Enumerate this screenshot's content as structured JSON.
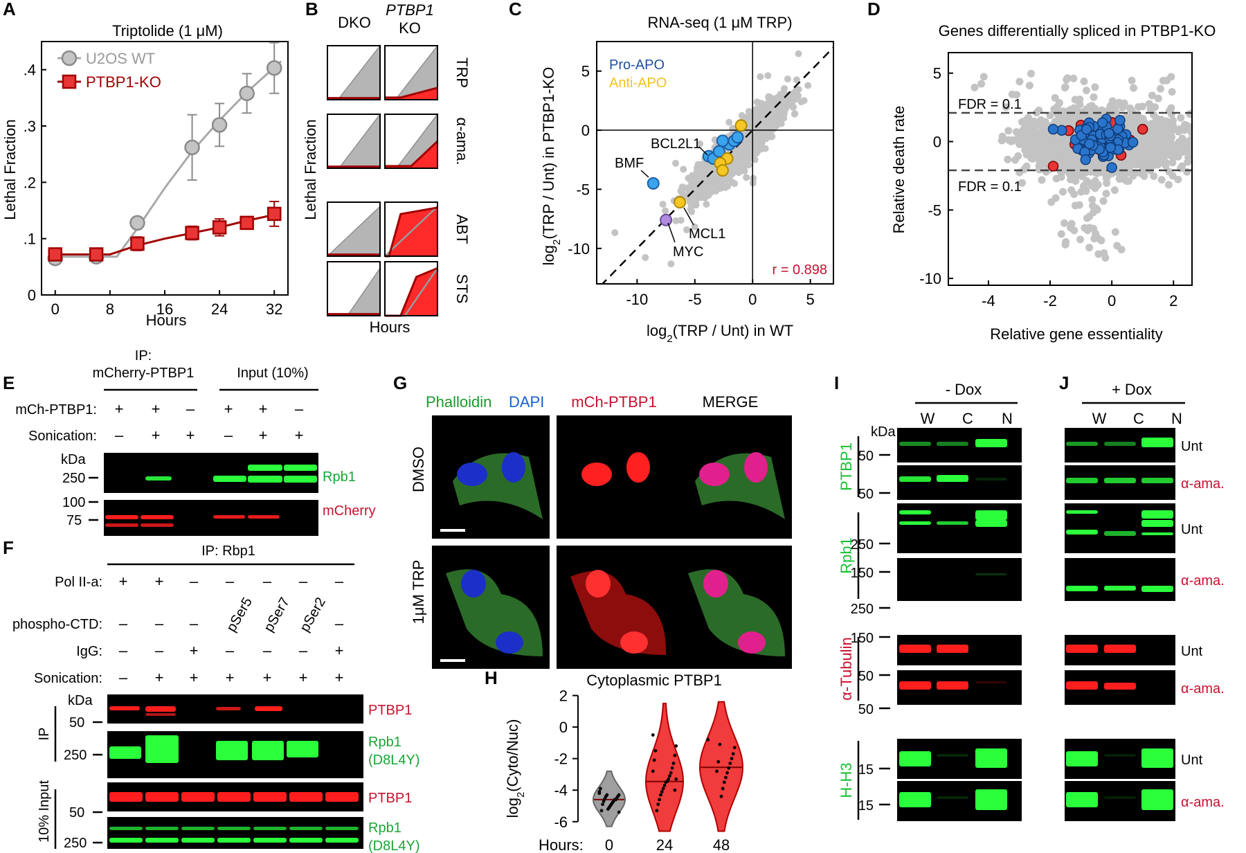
{
  "panel_letters": {
    "a": "A",
    "b": "B",
    "c": "C",
    "d": "D",
    "e": "E",
    "f": "F",
    "g": "G",
    "h": "H",
    "i": "I",
    "j": "J"
  },
  "colors": {
    "gray": "#a9a9a9",
    "red": "#e83535",
    "darkred": "#a00000",
    "blue": "#1f6fd0",
    "lightblue": "#2e9be8",
    "gold": "#f3c21a",
    "purple": "#b084d8",
    "green": "#26c93c",
    "bandred": "#ff1e1e",
    "bandgreen": "#2bff3c"
  },
  "chart_data": [
    {
      "id": "A",
      "type": "line",
      "title": "Triptolide (1 μM)",
      "xlabel": "Hours",
      "ylabel": "Lethal Fraction",
      "xlim": [
        -2,
        34
      ],
      "ylim": [
        0,
        0.45
      ],
      "xticks": [
        0,
        8,
        16,
        24,
        32
      ],
      "xtick_labels": [
        "0",
        "8",
        "16",
        "24",
        "32"
      ],
      "yticks": [
        0,
        0.1,
        0.2,
        0.3,
        0.4
      ],
      "ytick_labels": [
        "0",
        ".1",
        ".2",
        ".3",
        ".4"
      ],
      "series": [
        {
          "name": "U2OS WT",
          "x": [
            0,
            6,
            12,
            20,
            24,
            28,
            32
          ],
          "y": [
            0.065,
            0.068,
            0.128,
            0.262,
            0.302,
            0.358,
            0.403
          ],
          "err": [
            0.008,
            0.008,
            0.01,
            0.058,
            0.038,
            0.035,
            0.045
          ],
          "fit_x": [
            -1,
            9,
            12,
            16,
            20,
            24,
            28,
            33
          ],
          "fit_y": [
            0.068,
            0.068,
            0.118,
            0.19,
            0.255,
            0.31,
            0.36,
            0.415
          ]
        },
        {
          "name": "PTBP1-KO",
          "x": [
            0,
            6,
            12,
            20,
            24,
            28,
            32
          ],
          "y": [
            0.072,
            0.072,
            0.091,
            0.11,
            0.12,
            0.128,
            0.144
          ],
          "err": [
            0.01,
            0.008,
            0.012,
            0.012,
            0.015,
            0.01,
            0.022
          ],
          "fit_x": [
            -1,
            8,
            12,
            16,
            20,
            24,
            28,
            33
          ],
          "fit_y": [
            0.072,
            0.072,
            0.088,
            0.1,
            0.11,
            0.12,
            0.132,
            0.145
          ]
        }
      ]
    },
    {
      "id": "B",
      "type": "line",
      "col_labels": [
        "DKO",
        "PTBP1",
        "KO"
      ],
      "row_labels": [
        "TRP",
        "α-ama.",
        "ABT",
        "STS"
      ],
      "xlabel": "Hours",
      "ylabel": "Lethal Fraction",
      "curves": {
        "TRP": {
          "dko": [
            [
              0,
              0
            ],
            [
              0.2,
              0
            ],
            [
              1,
              1
            ]
          ],
          "ko": [
            [
              0,
              0.04
            ],
            [
              0.3,
              0.04
            ],
            [
              1,
              0.22
            ]
          ]
        },
        "α-ama.": {
          "dko": [
            [
              0,
              0
            ],
            [
              0.22,
              0
            ],
            [
              1,
              1
            ]
          ],
          "ko": [
            [
              0,
              0.04
            ],
            [
              0.5,
              0.04
            ],
            [
              1,
              0.5
            ]
          ]
        },
        "ABT": {
          "dko": [
            [
              0,
              0
            ],
            [
              1,
              0.92
            ]
          ],
          "ko": [
            [
              0,
              0
            ],
            [
              0.08,
              0
            ],
            [
              0.3,
              0.78
            ],
            [
              1,
              0.9
            ]
          ]
        },
        "STS": {
          "dko": [
            [
              0,
              0
            ],
            [
              0.38,
              0
            ],
            [
              1,
              0.88
            ]
          ],
          "ko": [
            [
              0,
              0
            ],
            [
              0.3,
              0
            ],
            [
              0.6,
              0.72
            ],
            [
              1,
              0.88
            ]
          ]
        }
      }
    },
    {
      "id": "C",
      "type": "scatter",
      "title": "RNA-seq (1 μM TRP)",
      "xlabel_pre": "log",
      "xlabel_sub": "2",
      "xlabel_post": "(TRP / Unt) in WT",
      "ylabel_pre": "log",
      "ylabel_sub": "2",
      "ylabel_post": "(TRP / Unt) in PTBP1-KO",
      "xlim": [
        -13.5,
        7
      ],
      "ylim": [
        -13,
        7.5
      ],
      "xticks": [
        -10,
        -5,
        0,
        5
      ],
      "xtick_labels": [
        "-10",
        "-5",
        "0",
        "5"
      ],
      "yticks": [
        -10,
        -5,
        0,
        5
      ],
      "ytick_labels": [
        "-10",
        "-5",
        "0",
        "5"
      ],
      "legend": [
        "Pro-APO",
        "Anti-APO"
      ],
      "correlation": "r = 0.898",
      "gene_labels": [
        "BCL2L1",
        "BMF",
        "MCL1",
        "MYC"
      ],
      "pro_apo": [
        [
          -8.6,
          -4.5
        ],
        [
          -3.8,
          -2.2
        ],
        [
          -3.4,
          -2.4
        ],
        [
          -2.9,
          -1.8
        ],
        [
          -2.0,
          -1.2
        ],
        [
          -1.6,
          -0.9
        ],
        [
          -2.6,
          -0.9
        ],
        [
          -1.3,
          -0.6
        ]
      ],
      "anti_apo": [
        [
          -1.0,
          0.4
        ],
        [
          -2.2,
          -2.4
        ],
        [
          -2.8,
          -2.8
        ],
        [
          -2.6,
          -3.4
        ],
        [
          -6.3,
          -6.1
        ]
      ],
      "myc": [
        -7.5,
        -7.6
      ]
    },
    {
      "id": "D",
      "type": "scatter",
      "title": "Genes differentially spliced in PTBP1-KO",
      "xlabel": "Relative gene essentiality",
      "ylabel": "Relative death rate",
      "xlim": [
        -5.3,
        2.6
      ],
      "ylim": [
        -10.5,
        6.5
      ],
      "xticks": [
        -4,
        -2,
        0,
        2
      ],
      "xtick_labels": [
        "-4",
        "-2",
        "0",
        "2"
      ],
      "yticks": [
        5,
        0,
        -5,
        -10
      ],
      "ytick_labels": [
        "5",
        "0",
        "-5",
        "-10"
      ],
      "fdr_label": "FDR = 0.1",
      "fdr_lines": [
        2.1,
        -2.1
      ],
      "red_points": [
        [
          -1.4,
          0.8
        ],
        [
          -1.0,
          1.2
        ],
        [
          0.0,
          1.4
        ],
        [
          0.6,
          0.1
        ],
        [
          1.0,
          0.9
        ],
        [
          -1.9,
          -1.8
        ],
        [
          -0.4,
          -0.6
        ],
        [
          0.3,
          -1.0
        ],
        [
          -1.2,
          -0.2
        ]
      ],
      "blue_outliers": [
        [
          -1.9,
          0.9
        ],
        [
          0.0,
          -1.9
        ]
      ]
    },
    {
      "id": "H",
      "type": "violin",
      "title": "Cytoplasmic PTBP1",
      "ylabel_pre": "log",
      "ylabel_sub": "2",
      "ylabel_post": "(Cyto/Nuc)",
      "ylim": [
        -6.8,
        2.2
      ],
      "yticks": [
        2,
        0,
        -2,
        -4,
        -6
      ],
      "ytick_labels": [
        "2",
        "0",
        "-2",
        "-4",
        "-6"
      ],
      "x_prefix": "Hours:",
      "categories": [
        "0",
        "24",
        "48"
      ],
      "medians": [
        -4.6,
        -3.45,
        -2.55
      ],
      "ranges": [
        [
          -6.3,
          -2.8
        ],
        [
          -6.6,
          1.5
        ],
        [
          -6.6,
          1.6
        ]
      ],
      "points": {
        "0": [
          -4.1,
          -4.3,
          -4.4,
          -4.5,
          -4.6,
          -4.6,
          -4.7,
          -4.8,
          -4.9,
          -5.0,
          -5.1,
          -5.2,
          -4.3,
          -4.4,
          -4.55,
          -4.7,
          -4.9,
          -5.3,
          -3.9,
          -4.2,
          -5.4
        ],
        "24": [
          -0.5,
          -1.2,
          -1.8,
          -2.3,
          -2.6,
          -2.9,
          -3.1,
          -3.3,
          -3.45,
          -3.5,
          -3.7,
          -3.9,
          -4.1,
          -4.3,
          -4.6,
          -4.9,
          -5.3,
          -1.5,
          -2.1,
          -2.8,
          -3.3,
          -4.0
        ],
        "48": [
          -0.8,
          -1.3,
          -1.7,
          -2.0,
          -2.3,
          -2.6,
          -2.9,
          -3.2,
          -3.5,
          -3.9,
          -4.4,
          -1.1,
          -2.2,
          -2.8
        ]
      }
    }
  ],
  "panelE": {
    "ip_title": "IP:",
    "ip_title2": "mCherry-PTBP1",
    "input_title": "Input (10%)",
    "rows": [
      {
        "label": "mCh-PTBP1:",
        "values": [
          "+",
          "+",
          "–",
          "+",
          "+",
          "–"
        ]
      },
      {
        "label": "Sonication:",
        "values": [
          "–",
          "+",
          "+",
          "–",
          "+",
          "+"
        ]
      }
    ],
    "kda": "kDa",
    "markers": [
      "250",
      "100",
      "75"
    ],
    "band_labels": [
      "Rpb1",
      "mCherry"
    ]
  },
  "panelF": {
    "title": "IP: Rbp1",
    "rows": [
      {
        "label": "Pol II-a:",
        "values": [
          "+",
          "+",
          "–",
          "–",
          "–",
          "–",
          "–"
        ]
      },
      {
        "label": "phospho-CTD:",
        "values": [
          "–",
          "–",
          "–",
          "pSer5",
          "pSer7",
          "pSer2",
          "–"
        ]
      },
      {
        "label": "IgG:",
        "values": [
          "–",
          "–",
          "+",
          "–",
          "–",
          "–",
          "+"
        ]
      },
      {
        "label": "Sonication:",
        "values": [
          "–",
          "+",
          "+",
          "+",
          "+",
          "+",
          "+"
        ]
      }
    ],
    "kda": "kDa",
    "markers": [
      "50",
      "250",
      "50",
      "250"
    ],
    "side_labels": [
      "IP",
      "10% Input"
    ],
    "band_labels": [
      "PTBP1",
      "Rpb1",
      "(D8L4Y)",
      "PTBP1",
      "Rpb1",
      "(D8L4Y)"
    ]
  },
  "panelG": {
    "cols": [
      "Phalloidin",
      "DAPI",
      "mCh-PTBP1",
      "MERGE"
    ],
    "rows": [
      "DMSO",
      "1μM TRP"
    ]
  },
  "panelI": {
    "title": "- Dox",
    "lanes": [
      "W",
      "C",
      "N"
    ],
    "kda": "kDa",
    "groups": [
      "PTBP1",
      "Rpb1",
      "α-Tubulin",
      "H-H3"
    ],
    "markers": [
      "50",
      "50",
      "250",
      "150",
      "250",
      "150",
      "50",
      "50",
      "15",
      "15"
    ]
  },
  "panelJ": {
    "title": "+ Dox",
    "lanes": [
      "W",
      "C",
      "N"
    ],
    "row_labels": [
      "Unt",
      "α-ama.",
      "Unt",
      "α-ama.",
      "Unt",
      "α-ama.",
      "Unt",
      "α-ama."
    ]
  }
}
